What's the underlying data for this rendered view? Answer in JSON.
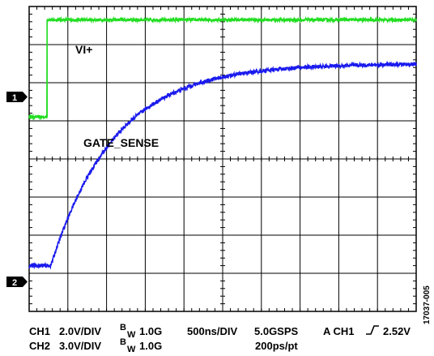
{
  "chart_data": {
    "type": "line",
    "grid": true,
    "x_divisions": 10,
    "y_divisions": 8,
    "ylim_div": [
      -4,
      4
    ],
    "x_unit": "ns",
    "x_per_div": 500,
    "series": [
      {
        "name": "VI+",
        "channel_marker": "1",
        "color": "#22dd22",
        "marker_level_div": 1.1,
        "step_at_ns": 230,
        "low_div": 1.1,
        "high_div": 3.65,
        "noise_div": 0.04
      },
      {
        "name": "GATE_SENSE",
        "channel_marker": "2",
        "color": "#1a1aee",
        "marker_level_div": -2.8,
        "start_at_ns": 280,
        "low_div": -2.8,
        "tau_ns": 820,
        "amplitude_div": 5.3,
        "noise_div": 0.05
      }
    ]
  },
  "labels": {
    "ch1_trace": "VI+",
    "ch2_trace": "GATE_SENSE",
    "marker1": "1",
    "marker2": "2",
    "figure_id": "17037-005"
  },
  "footer": {
    "ch1_label": "CH1",
    "ch1_scale": "2.0V/DIV",
    "ch1_bw_b": "B",
    "ch1_bw_sub": "W",
    "ch1_bw_value": "1.0G",
    "ch2_label": "CH2",
    "ch2_scale": "3.0V/DIV",
    "ch2_bw_b": "B",
    "ch2_bw_sub": "W",
    "ch2_bw_value": "1.0G",
    "timebase": "500ns/DIV",
    "sample_rate": "5.0GSPS",
    "resolution": "200ps/pt",
    "trigger_prefix": "A CH1",
    "trigger_level": "2.52V"
  }
}
